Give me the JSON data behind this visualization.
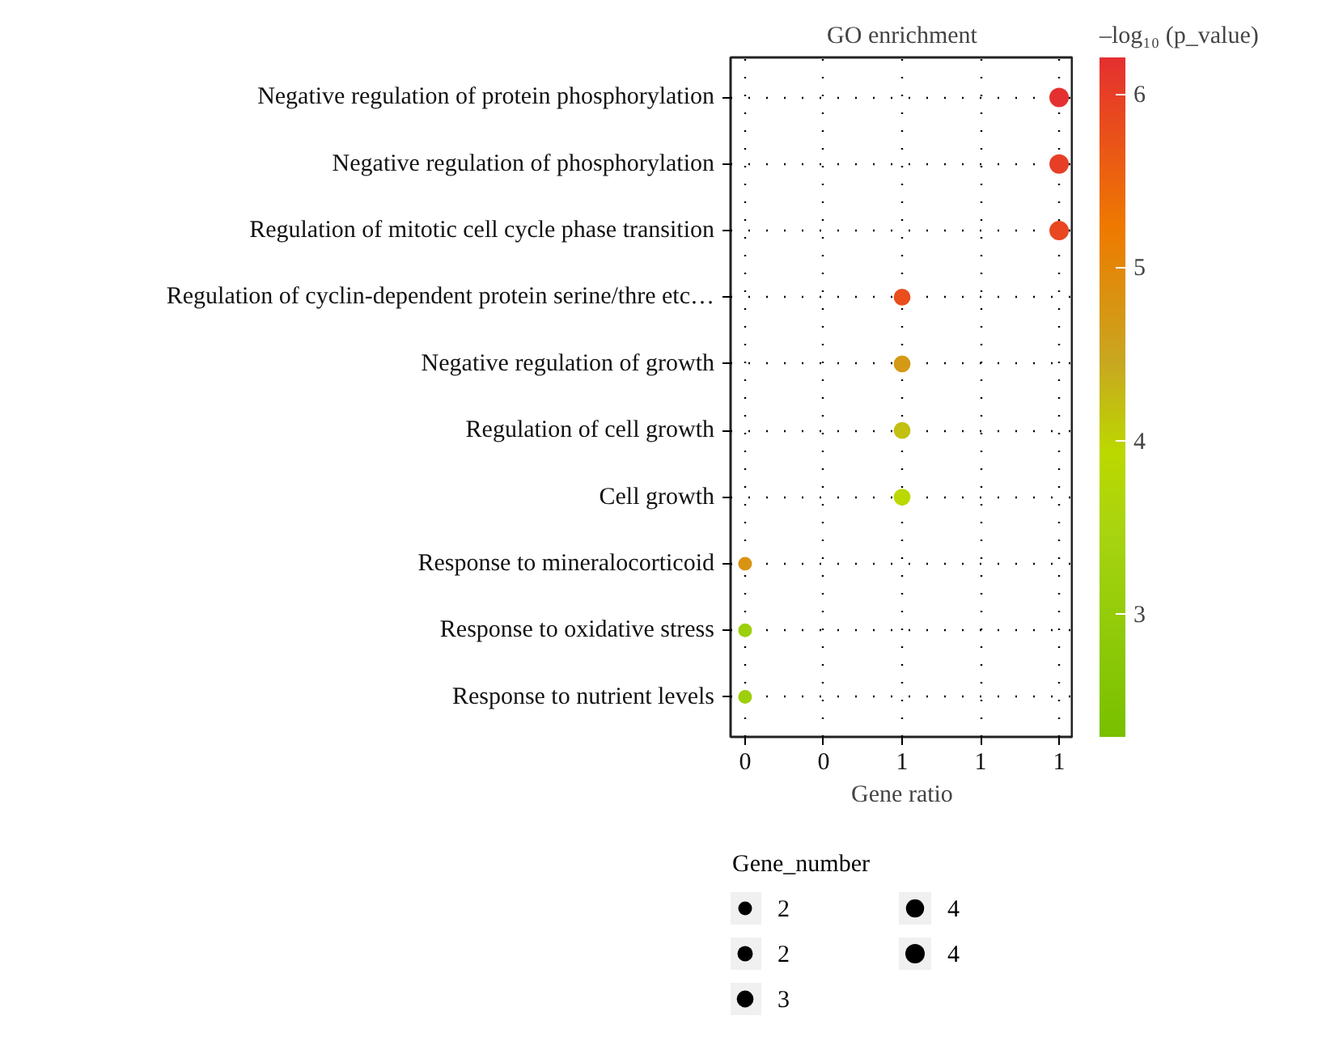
{
  "chart_data": {
    "type": "bubble",
    "orientation": "horizontal",
    "title": "GO enrichment",
    "xlabel": "Gene ratio",
    "clabel": "–log₁₀ (p_value)",
    "legend_title": "Gene_number",
    "categories": [
      "Negative regulation of protein phosphorylation",
      "Negative regulation of phosphorylation",
      "Regulation of mitotic cell cycle phase transition",
      "Regulation of cyclin-dependent protein serine/thre etc…",
      "Negative regulation of growth",
      "Regulation of cell growth",
      "Cell growth",
      "Response to mineralocorticoid",
      "Response to oxidative stress",
      "Response to nutrient levels"
    ],
    "values": [
      1.0,
      1.0,
      1.0,
      0.6,
      0.6,
      0.6,
      0.6,
      0.2,
      0.2,
      0.2
    ],
    "sizes": [
      4,
      4,
      4,
      3,
      3,
      3,
      3,
      2,
      2,
      2
    ],
    "cvalues": [
      6.2,
      6.0,
      5.9,
      5.8,
      4.7,
      4.2,
      3.9,
      4.8,
      3.2,
      3.2
    ],
    "xlim": [
      0.163,
      1.037
    ],
    "xticks": [
      {
        "value": 0.2,
        "label": "0"
      },
      {
        "value": 0.4,
        "label": "0"
      },
      {
        "value": 0.6,
        "label": "1"
      },
      {
        "value": 0.8,
        "label": "1"
      },
      {
        "value": 1.0,
        "label": "1"
      }
    ],
    "size_legend": [
      {
        "value": 2,
        "label": "2"
      },
      {
        "value": 2.5,
        "label": "2"
      },
      {
        "value": 3,
        "label": "3"
      },
      {
        "value": 3.5,
        "label": "4"
      },
      {
        "value": 4,
        "label": "4"
      }
    ],
    "clim": [
      2.29,
      6.21
    ],
    "cticks": [
      3,
      4,
      5,
      6
    ],
    "grid": true
  }
}
